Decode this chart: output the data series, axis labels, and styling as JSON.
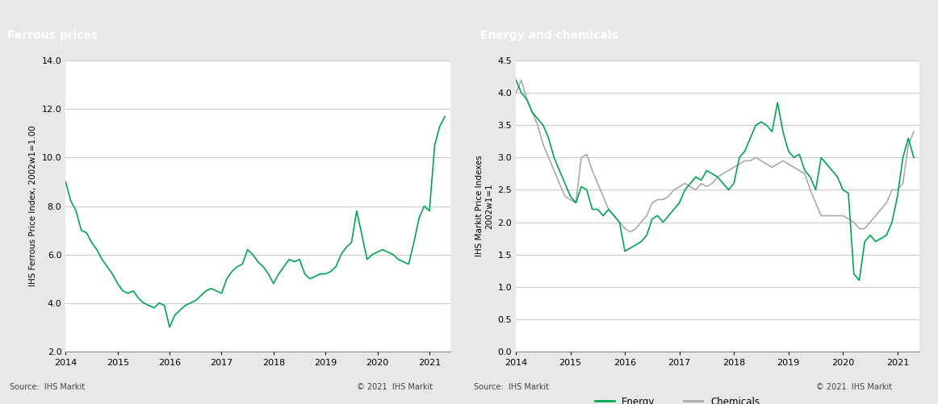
{
  "left_title": "Ferrous prices",
  "right_title": "Energy and chemicals",
  "left_ylabel": "IHS Ferrous Price Index, 2002w1=1.00",
  "right_ylabel": "IHS Markit Price Indexes\n2002w1=1",
  "left_ylim": [
    2.0,
    14.0
  ],
  "right_ylim": [
    0.0,
    4.5
  ],
  "left_yticks": [
    2.0,
    4.0,
    6.0,
    8.0,
    10.0,
    12.0,
    14.0
  ],
  "right_yticks": [
    0.0,
    0.5,
    1.0,
    1.5,
    2.0,
    2.5,
    3.0,
    3.5,
    4.0,
    4.5
  ],
  "source_left": "Source:  IHS Markit",
  "source_right": "Source:  IHS Markit",
  "copyright_left": "© 2021  IHS Markit",
  "copyright_right": "© 2021  IHS Markit",
  "header_color": "#808080",
  "header_text_color": "#ffffff",
  "green_color": "#00a651",
  "gray_color": "#aaaaaa",
  "bg_plot": "#ffffff",
  "grid_color": "#cccccc",
  "ferrous_x": [
    2014.0,
    2014.1,
    2014.2,
    2014.3,
    2014.4,
    2014.5,
    2014.6,
    2014.7,
    2014.8,
    2014.9,
    2015.0,
    2015.1,
    2015.2,
    2015.3,
    2015.4,
    2015.5,
    2015.6,
    2015.7,
    2015.8,
    2015.9,
    2016.0,
    2016.1,
    2016.2,
    2016.3,
    2016.4,
    2016.5,
    2016.6,
    2016.7,
    2016.8,
    2016.9,
    2017.0,
    2017.1,
    2017.2,
    2017.3,
    2017.4,
    2017.5,
    2017.6,
    2017.7,
    2017.8,
    2017.9,
    2018.0,
    2018.1,
    2018.2,
    2018.3,
    2018.4,
    2018.5,
    2018.6,
    2018.7,
    2018.8,
    2018.9,
    2019.0,
    2019.1,
    2019.2,
    2019.3,
    2019.4,
    2019.5,
    2019.6,
    2019.7,
    2019.8,
    2019.9,
    2020.0,
    2020.1,
    2020.2,
    2020.3,
    2020.4,
    2020.5,
    2020.6,
    2020.7,
    2020.8,
    2020.9,
    2021.0,
    2021.1,
    2021.2,
    2021.3
  ],
  "ferrous_y": [
    9.0,
    8.2,
    7.8,
    7.0,
    6.9,
    6.5,
    6.2,
    5.8,
    5.5,
    5.2,
    4.8,
    4.5,
    4.4,
    4.5,
    4.2,
    4.0,
    3.9,
    3.8,
    4.0,
    3.9,
    3.0,
    3.5,
    3.7,
    3.9,
    4.0,
    4.1,
    4.3,
    4.5,
    4.6,
    4.5,
    4.4,
    5.0,
    5.3,
    5.5,
    5.6,
    6.2,
    6.0,
    5.7,
    5.5,
    5.2,
    4.8,
    5.2,
    5.5,
    5.8,
    5.7,
    5.8,
    5.2,
    5.0,
    5.1,
    5.2,
    5.2,
    5.3,
    5.5,
    6.0,
    6.3,
    6.5,
    7.8,
    6.8,
    5.8,
    6.0,
    6.1,
    6.2,
    6.1,
    6.0,
    5.8,
    5.7,
    5.6,
    6.5,
    7.5,
    8.0,
    7.8,
    10.5,
    11.3,
    11.7
  ],
  "energy_x": [
    2014.0,
    2014.1,
    2014.2,
    2014.3,
    2014.4,
    2014.5,
    2014.6,
    2014.7,
    2014.8,
    2014.9,
    2015.0,
    2015.1,
    2015.2,
    2015.3,
    2015.4,
    2015.5,
    2015.6,
    2015.7,
    2015.8,
    2015.9,
    2016.0,
    2016.1,
    2016.2,
    2016.3,
    2016.4,
    2016.5,
    2016.6,
    2016.7,
    2016.8,
    2016.9,
    2017.0,
    2017.1,
    2017.2,
    2017.3,
    2017.4,
    2017.5,
    2017.6,
    2017.7,
    2017.8,
    2017.9,
    2018.0,
    2018.1,
    2018.2,
    2018.3,
    2018.4,
    2018.5,
    2018.6,
    2018.7,
    2018.8,
    2018.9,
    2019.0,
    2019.1,
    2019.2,
    2019.3,
    2019.4,
    2019.5,
    2019.6,
    2019.7,
    2019.8,
    2019.9,
    2020.0,
    2020.1,
    2020.2,
    2020.3,
    2020.4,
    2020.5,
    2020.6,
    2020.7,
    2020.8,
    2020.9,
    2021.0,
    2021.1,
    2021.2,
    2021.3
  ],
  "energy_y": [
    4.2,
    4.0,
    3.9,
    3.7,
    3.6,
    3.5,
    3.3,
    3.0,
    2.8,
    2.6,
    2.4,
    2.3,
    2.55,
    2.5,
    2.2,
    2.2,
    2.1,
    2.2,
    2.1,
    2.0,
    1.55,
    1.6,
    1.65,
    1.7,
    1.8,
    2.05,
    2.1,
    2.0,
    2.1,
    2.2,
    2.3,
    2.5,
    2.6,
    2.7,
    2.65,
    2.8,
    2.75,
    2.7,
    2.6,
    2.5,
    2.6,
    3.0,
    3.1,
    3.3,
    3.5,
    3.55,
    3.5,
    3.4,
    3.85,
    3.4,
    3.1,
    3.0,
    3.05,
    2.8,
    2.7,
    2.5,
    3.0,
    2.9,
    2.8,
    2.7,
    2.5,
    2.45,
    1.2,
    1.1,
    1.7,
    1.8,
    1.7,
    1.75,
    1.8,
    2.0,
    2.4,
    3.0,
    3.3,
    3.0
  ],
  "chemicals_x": [
    2014.0,
    2014.1,
    2014.2,
    2014.3,
    2014.4,
    2014.5,
    2014.6,
    2014.7,
    2014.8,
    2014.9,
    2015.0,
    2015.1,
    2015.2,
    2015.3,
    2015.4,
    2015.5,
    2015.6,
    2015.7,
    2015.8,
    2015.9,
    2016.0,
    2016.1,
    2016.2,
    2016.3,
    2016.4,
    2016.5,
    2016.6,
    2016.7,
    2016.8,
    2016.9,
    2017.0,
    2017.1,
    2017.2,
    2017.3,
    2017.4,
    2017.5,
    2017.6,
    2017.7,
    2017.8,
    2017.9,
    2018.0,
    2018.1,
    2018.2,
    2018.3,
    2018.4,
    2018.5,
    2018.6,
    2018.7,
    2018.8,
    2018.9,
    2019.0,
    2019.1,
    2019.2,
    2019.3,
    2019.4,
    2019.5,
    2019.6,
    2019.7,
    2019.8,
    2019.9,
    2020.0,
    2020.1,
    2020.2,
    2020.3,
    2020.4,
    2020.5,
    2020.6,
    2020.7,
    2020.8,
    2020.9,
    2021.0,
    2021.1,
    2021.2,
    2021.3
  ],
  "chemicals_y": [
    4.0,
    4.2,
    3.9,
    3.7,
    3.5,
    3.2,
    3.0,
    2.8,
    2.6,
    2.4,
    2.35,
    2.3,
    3.0,
    3.05,
    2.8,
    2.6,
    2.4,
    2.2,
    2.1,
    2.0,
    1.9,
    1.85,
    1.9,
    2.0,
    2.1,
    2.3,
    2.35,
    2.35,
    2.4,
    2.5,
    2.55,
    2.6,
    2.55,
    2.5,
    2.6,
    2.55,
    2.6,
    2.7,
    2.75,
    2.8,
    2.85,
    2.9,
    2.95,
    2.95,
    3.0,
    2.95,
    2.9,
    2.85,
    2.9,
    2.95,
    2.9,
    2.85,
    2.8,
    2.75,
    2.5,
    2.3,
    2.1,
    2.1,
    2.1,
    2.1,
    2.1,
    2.05,
    2.0,
    1.9,
    1.9,
    2.0,
    2.1,
    2.2,
    2.3,
    2.5,
    2.5,
    2.6,
    3.2,
    3.4
  ],
  "xticks": [
    2014,
    2015,
    2016,
    2017,
    2018,
    2019,
    2020,
    2021
  ]
}
